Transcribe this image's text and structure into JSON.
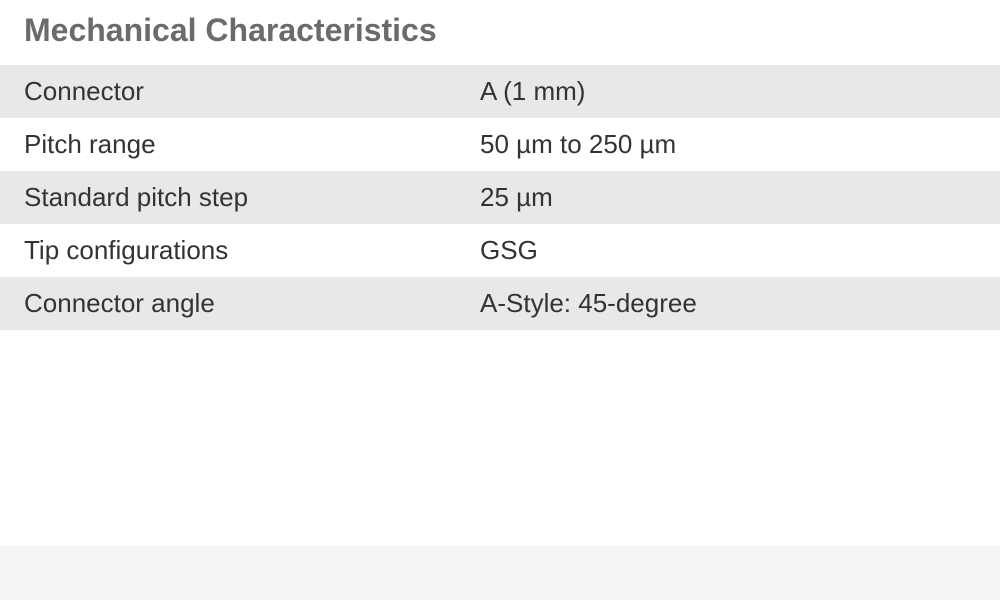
{
  "title": "Mechanical Characteristics",
  "specs": {
    "rows": [
      {
        "label": "Connector",
        "value": "A (1 mm)"
      },
      {
        "label": "Pitch range",
        "value": "50 µm to 250 µm"
      },
      {
        "label": "Standard pitch step",
        "value": "25 µm"
      },
      {
        "label": "Tip configurations",
        "value": "GSG"
      },
      {
        "label": "Connector angle",
        "value": "A-Style: 45-degree"
      }
    ]
  },
  "colors": {
    "title_color": "#6b6b6b",
    "text_color": "#333333",
    "row_odd_bg": "#e8e8e8",
    "row_even_bg": "#ffffff",
    "footer_bg": "#f5f5f5"
  },
  "typography": {
    "title_fontsize": 32,
    "title_weight": 700,
    "body_fontsize": 26,
    "body_weight": 400
  }
}
